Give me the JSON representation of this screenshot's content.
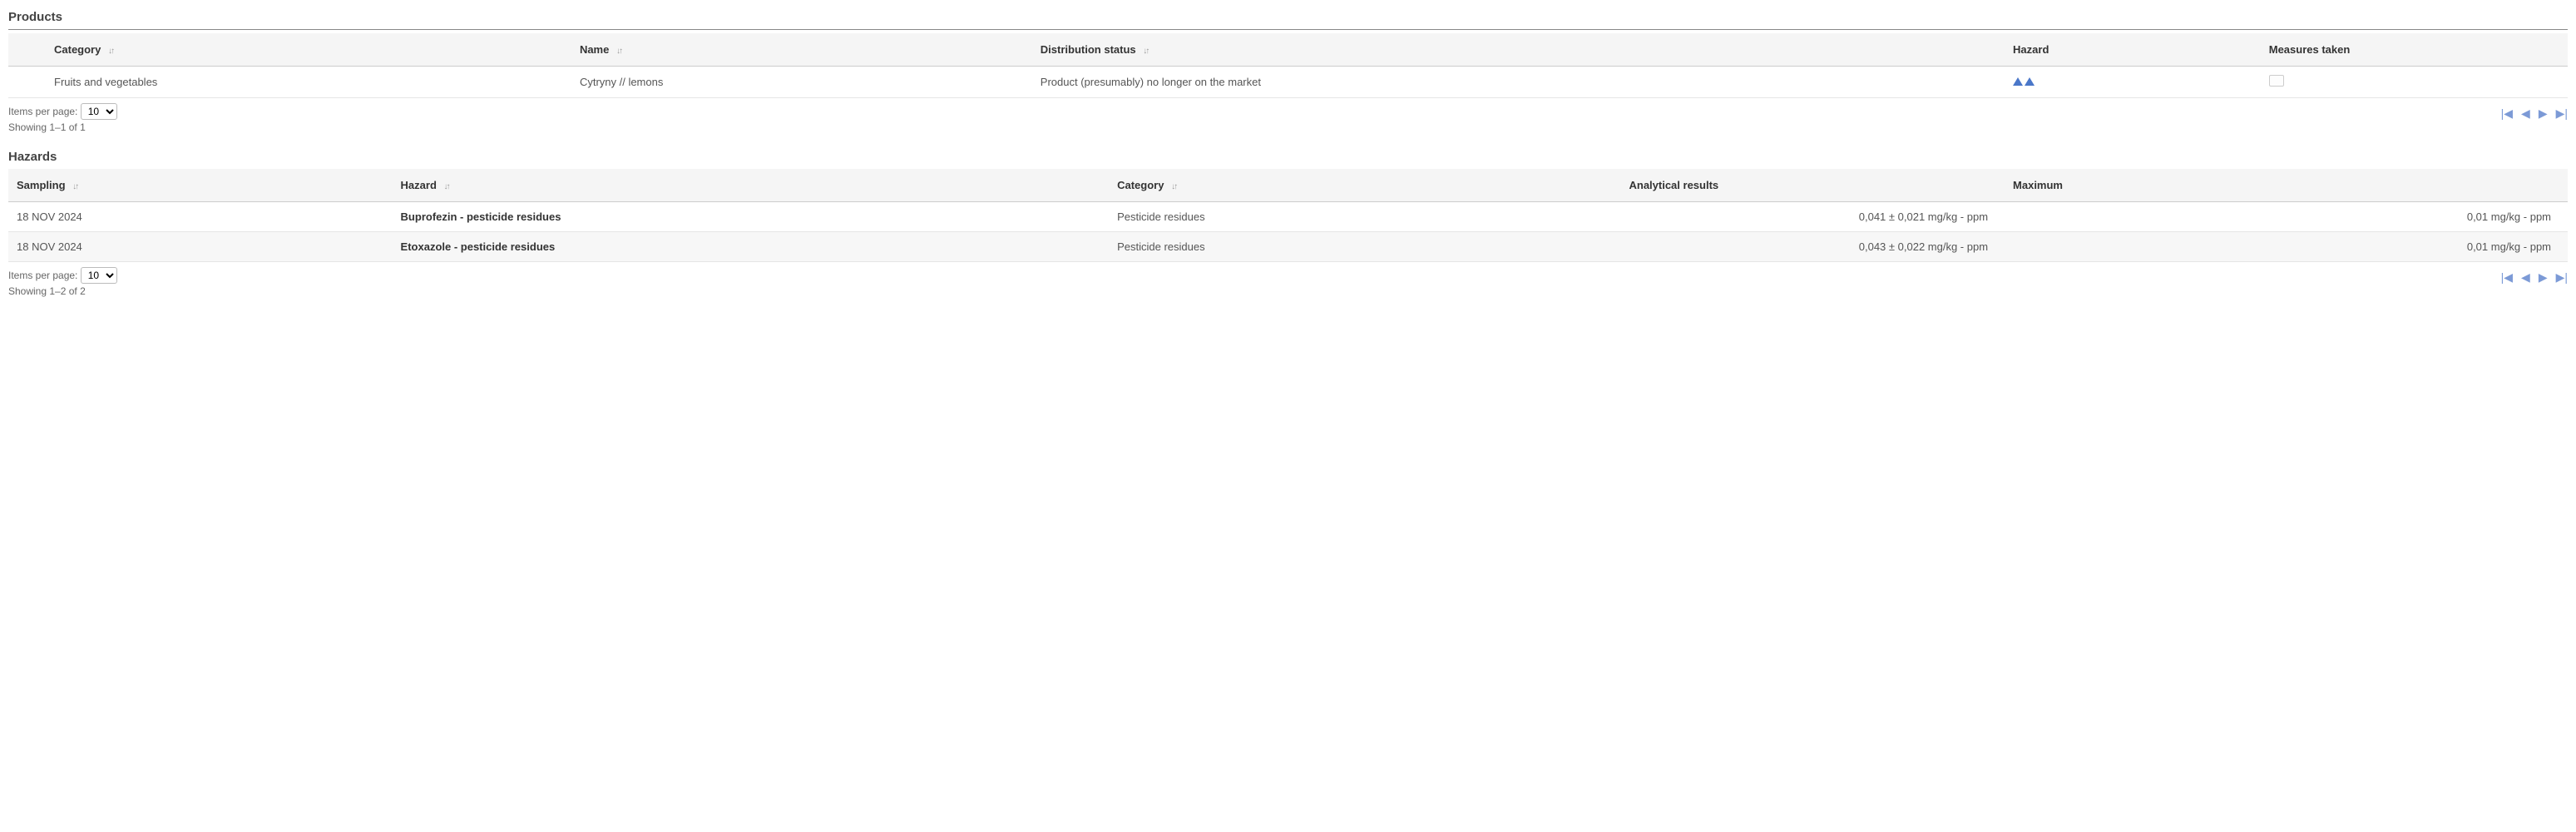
{
  "products": {
    "title": "Products",
    "columns": {
      "category": "Category",
      "name": "Name",
      "distribution": "Distribution status",
      "hazard": "Hazard",
      "measures": "Measures taken"
    },
    "rows": [
      {
        "category": "Fruits and vegetables",
        "name": "Cytryny // lemons",
        "distribution": "Product (presumably) no longer on the market",
        "hazard_count": 2
      }
    ],
    "pager": {
      "items_per_page_label": "Items per page:",
      "items_per_page_value": "10",
      "showing": "Showing 1–1 of 1"
    }
  },
  "hazards": {
    "title": "Hazards",
    "columns": {
      "sampling": "Sampling",
      "hazard": "Hazard",
      "category": "Category",
      "analytical": "Analytical results",
      "maximum": "Maximum"
    },
    "rows": [
      {
        "sampling": "18 NOV 2024",
        "hazard": "Buprofezin - pesticide residues",
        "category": "Pesticide residues",
        "analytical": "0,041 ± 0,021 mg/kg - ppm",
        "maximum": "0,01 mg/kg - ppm"
      },
      {
        "sampling": "18 NOV 2024",
        "hazard": "Etoxazole - pesticide residues",
        "category": "Pesticide residues",
        "analytical": "0,043 ± 0,022 mg/kg - ppm",
        "maximum": "0,01 mg/kg - ppm"
      }
    ],
    "pager": {
      "items_per_page_label": "Items per page:",
      "items_per_page_value": "10",
      "showing": "Showing 1–2 of 2"
    }
  },
  "icons": {
    "sort": "↓↑"
  },
  "colors": {
    "hazard_icon": "#4a77c9",
    "pager_btn": "#7c9ad6",
    "header_bg": "#f5f5f5"
  }
}
